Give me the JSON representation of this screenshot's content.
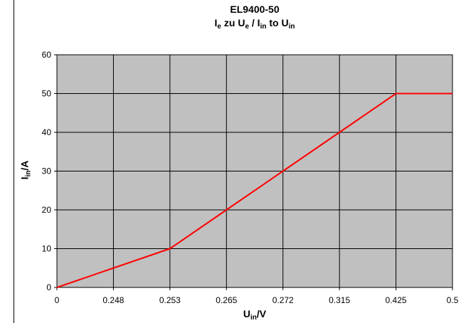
{
  "chart_data": {
    "type": "line",
    "title": "EL9400-50",
    "subtitle": {
      "a": "I",
      "a_sub": "e",
      "b": " zu U",
      "b_sub": "e",
      "c": " / I",
      "c_sub": "in",
      "d": " to U",
      "d_sub": "in"
    },
    "xlabel": {
      "main": "U",
      "sub": "in",
      "tail": "/V"
    },
    "ylabel": {
      "main": "I",
      "sub": "in",
      "tail": "/A"
    },
    "categories": [
      "0",
      "0.248",
      "0.253",
      "0.265",
      "0.272",
      "0.315",
      "0.425",
      "0.5"
    ],
    "y_ticks": [
      0,
      10,
      20,
      30,
      40,
      50,
      60
    ],
    "ylim": [
      0,
      60
    ],
    "series": [
      {
        "values": [
          0,
          5,
          10,
          20,
          30,
          40,
          50,
          50
        ],
        "color": "#ff0000"
      }
    ],
    "plot_background": "#c0c0c0",
    "grid": true
  }
}
